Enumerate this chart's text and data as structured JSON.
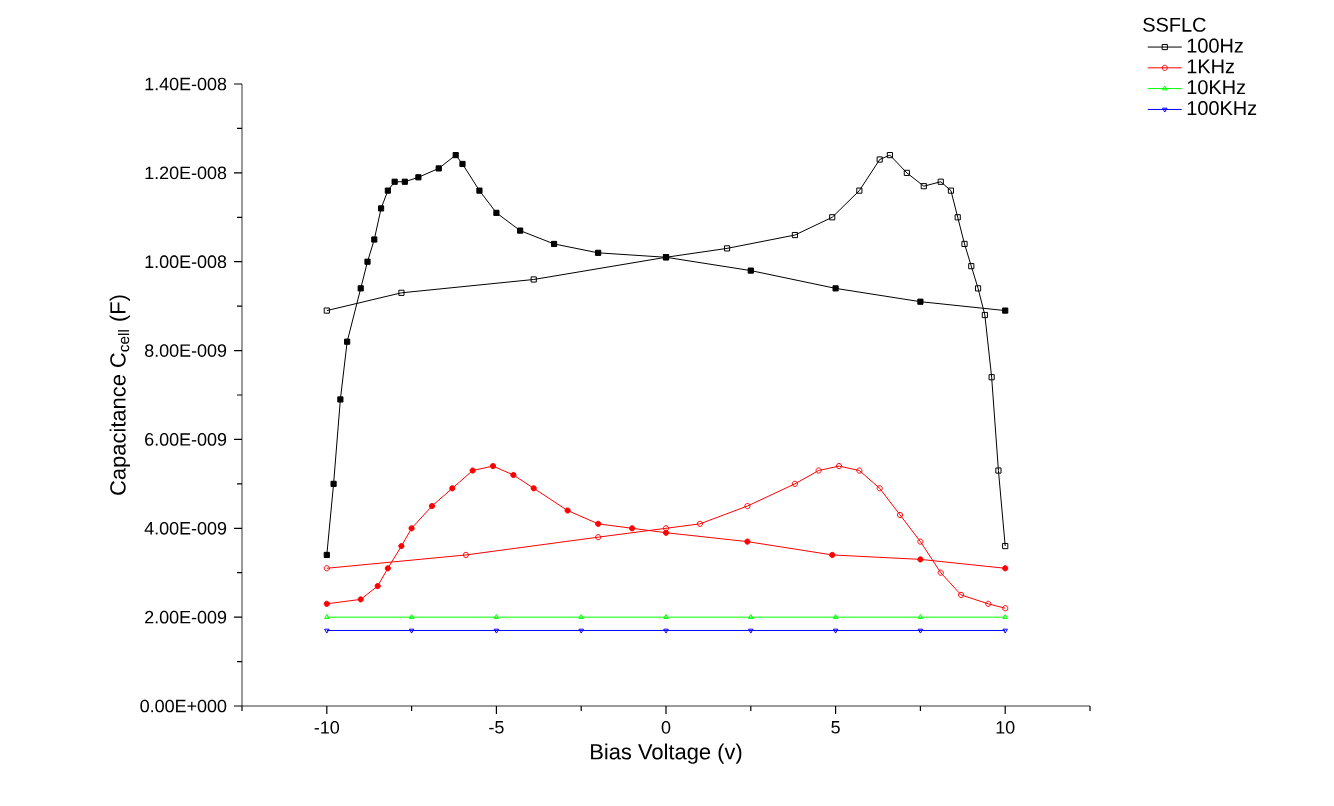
{
  "chart_data": {
    "type": "line",
    "xlabel": "Bias Voltage (v)",
    "ylabel": "Capacitance C$_{cell}$ (F)",
    "legend_title": "SSFLC",
    "legend": "top right",
    "line_style": "solid",
    "xlim": [
      -12.5,
      12.5
    ],
    "ylim": [
      0,
      1.4e-08
    ],
    "xticks": [
      -10,
      -5,
      0,
      5,
      10,
      {
        "value": -12.5,
        "label": null
      },
      {
        "value": -7.5,
        "label": null
      },
      {
        "value": -2.5,
        "label": null
      },
      {
        "value": 2.5,
        "label": null
      },
      {
        "value": 7.5,
        "label": null
      },
      {
        "value": 12.5,
        "label": null
      }
    ],
    "yticks": [
      {
        "value": 0,
        "label": "0.00E+000"
      },
      {
        "value": 2e-09,
        "label": "2.00E-009"
      },
      {
        "value": 4e-09,
        "label": "4.00E-009"
      },
      {
        "value": 6e-09,
        "label": "6.00E-009"
      },
      {
        "value": 8e-09,
        "label": "8.00E-009"
      },
      {
        "value": 1e-08,
        "label": "1.00E-008"
      },
      {
        "value": 1.2e-08,
        "label": "1.20E-008"
      },
      {
        "value": 1.4e-08,
        "label": "1.40E-008"
      },
      {
        "value": 1e-09,
        "label": null
      },
      {
        "value": 3e-09,
        "label": null
      },
      {
        "value": 5e-09,
        "label": null
      },
      {
        "value": 7e-09,
        "label": null
      },
      {
        "value": 9e-09,
        "label": null
      },
      {
        "value": 1.1e-08,
        "label": null
      },
      {
        "value": 1.3e-08,
        "label": null
      }
    ],
    "series": [
      {
        "name": "100Hz",
        "color": "#000000",
        "marker": "square",
        "x": [
          -10,
          -7.8,
          -3.9,
          0,
          1.8,
          3.8,
          4.9,
          5.7,
          6.3,
          6.6,
          7.1,
          7.6,
          8.1,
          8.4,
          8.6,
          8.8,
          9,
          9.2,
          9.4,
          9.6,
          9.8,
          10
        ],
        "values": [
          8.9e-09,
          9.3e-09,
          9.6e-09,
          1.01e-08,
          1.03e-08,
          1.06e-08,
          1.1e-08,
          1.16e-08,
          1.23e-08,
          1.24e-08,
          1.2e-08,
          1.17e-08,
          1.18e-08,
          1.16e-08,
          1.1e-08,
          1.04e-08,
          9.9e-09,
          9.4e-09,
          8.8e-09,
          7.4e-09,
          5.3e-09,
          3.6e-09
        ]
      },
      {
        "color": "#000000",
        "marker": "square",
        "x": [
          -10,
          -9.8,
          -9.6,
          -9.4,
          -9,
          -8.8,
          -8.6,
          -8.4,
          -8.2,
          -8,
          -7.7,
          -7.3,
          -6.7,
          -6.2,
          -6,
          -5.5,
          -5,
          -4.3,
          -3.3,
          -2,
          0,
          2.5,
          5,
          7.5,
          10
        ],
        "values": [
          3.4e-09,
          5e-09,
          6.9e-09,
          8.2e-09,
          9.4e-09,
          1e-08,
          1.05e-08,
          1.12e-08,
          1.16e-08,
          1.18e-08,
          1.18e-08,
          1.19e-08,
          1.21e-08,
          1.24e-08,
          1.22e-08,
          1.16e-08,
          1.11e-08,
          1.07e-08,
          1.04e-08,
          1.02e-08,
          1.01e-08,
          9.8e-09,
          9.4e-09,
          9.1e-09,
          8.9e-09
        ]
      },
      {
        "name": "1KHz",
        "color": "#ff0000",
        "marker": "circle",
        "x": [
          -10,
          -5.9,
          -2,
          0,
          1,
          2.4,
          3.8,
          4.5,
          5.1,
          5.7,
          6.3,
          6.9,
          7.5,
          8.1,
          8.7,
          9.5,
          10
        ],
        "values": [
          3.1e-09,
          3.4e-09,
          3.8e-09,
          4e-09,
          4.1e-09,
          4.5e-09,
          5e-09,
          5.3e-09,
          5.4e-09,
          5.3e-09,
          4.9e-09,
          4.3e-09,
          3.7e-09,
          3e-09,
          2.5e-09,
          2.3e-09,
          2.2e-09
        ]
      },
      {
        "color": "#ff0000",
        "marker": "circle",
        "x": [
          -10,
          -9,
          -8.5,
          -8.2,
          -7.8,
          -7.5,
          -6.9,
          -6.3,
          -5.7,
          -5.1,
          -4.5,
          -3.9,
          -2.9,
          -2,
          -1,
          0,
          2.4,
          4.9,
          7.5,
          10
        ],
        "values": [
          2.3e-09,
          2.4e-09,
          2.7e-09,
          3.1e-09,
          3.6e-09,
          4e-09,
          4.5e-09,
          4.9e-09,
          5.3e-09,
          5.4e-09,
          5.2e-09,
          4.9e-09,
          4.4e-09,
          4.1e-09,
          4e-09,
          3.9e-09,
          3.7e-09,
          3.4e-09,
          3.3e-09,
          3.1e-09
        ]
      },
      {
        "name": "10KHz",
        "color": "#00ff00",
        "marker": "triangle",
        "x": [
          -10,
          -7.5,
          -5,
          -2.5,
          0,
          2.5,
          5,
          7.5,
          10
        ],
        "values": [
          2e-09,
          2e-09,
          2e-09,
          2e-09,
          2e-09,
          2e-09,
          2e-09,
          2e-09,
          2e-09
        ]
      },
      {
        "name": "100KHz",
        "color": "#0000ff",
        "marker": "triangle_down",
        "x": [
          -10,
          -7.5,
          -5,
          -2.5,
          0,
          2.5,
          5,
          7.5,
          10
        ],
        "values": [
          1.7e-09,
          1.7e-09,
          1.7e-09,
          1.7e-09,
          1.7e-09,
          1.7e-09,
          1.7e-09,
          1.7e-09,
          1.7e-09
        ]
      }
    ]
  }
}
